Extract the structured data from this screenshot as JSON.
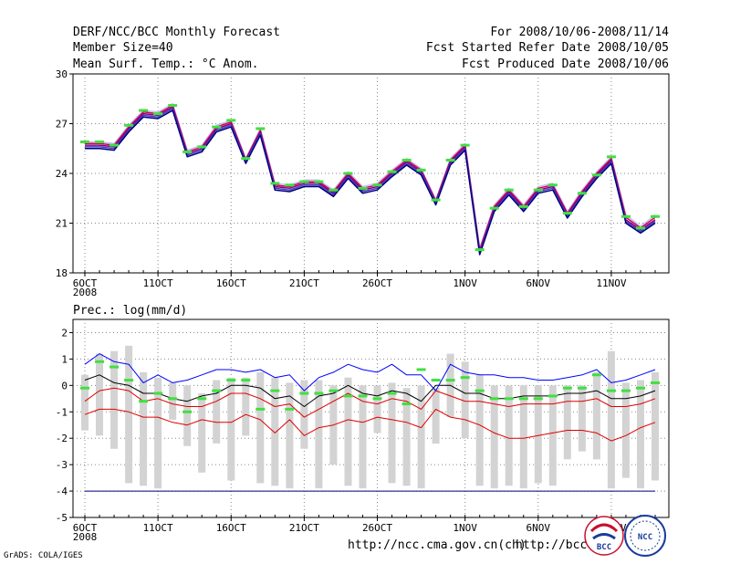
{
  "header": {
    "left": [
      "DERF/NCC/BCC Monthly Forecast",
      "Member Size=40",
      "Mean Surf. Temp.: °C Anom."
    ],
    "right": [
      "For 2008/10/06-2008/11/14",
      "Fcst Started Refer Date 2008/10/05",
      "Fcst Produced Date 2008/10/06"
    ]
  },
  "precip_title": "Prec.: log(mm/d)",
  "footer": {
    "grads": "GrADS: COLA/IGES",
    "url1": "http://ncc.cma.gov.cn(ch)",
    "url2": "http://bcc.",
    "logo1_text": "BCC",
    "logo2_text": "NCC"
  },
  "colors": {
    "ens_upper": "#c0c0ff",
    "ens_lower": "#000080",
    "mean": "#800080",
    "crimson": "#d4004a",
    "marker": "#40e040",
    "bar": "#d3d3d3",
    "upper_line": "#0000ff",
    "lower_line": "#e00000",
    "median_line": "#000000",
    "base_line": "#000080"
  },
  "chart_data": [
    {
      "type": "line",
      "title": "Mean Surf. Temp.: °C Anom.",
      "x_labels": [
        {
          "i": 0,
          "label": "6OCT",
          "sub": "2008"
        },
        {
          "i": 5,
          "label": "11OCT"
        },
        {
          "i": 10,
          "label": "16OCT"
        },
        {
          "i": 15,
          "label": "21OCT"
        },
        {
          "i": 20,
          "label": "26OCT"
        },
        {
          "i": 26,
          "label": "1NOV"
        },
        {
          "i": 31,
          "label": "6NOV"
        },
        {
          "i": 36,
          "label": "11NOV"
        }
      ],
      "n": 40,
      "ylim": [
        18,
        30
      ],
      "yticks": [
        18,
        21,
        24,
        27,
        30
      ],
      "series": [
        {
          "name": "markers",
          "values": [
            25.9,
            25.9,
            25.7,
            26.9,
            27.8,
            27.6,
            28.1,
            25.3,
            25.6,
            26.8,
            27.2,
            24.9,
            26.7,
            23.4,
            23.3,
            23.5,
            23.5,
            23.0,
            24.0,
            23.1,
            23.3,
            24.1,
            24.8,
            24.2,
            22.4,
            24.8,
            25.7,
            19.4,
            21.9,
            23.0,
            22.0,
            23.0,
            23.3,
            21.6,
            22.8,
            23.9,
            25.0,
            21.4,
            20.7,
            21.4
          ]
        },
        {
          "name": "upper",
          "values": [
            25.9,
            25.9,
            25.8,
            26.9,
            27.8,
            27.7,
            28.2,
            25.4,
            25.7,
            26.9,
            27.2,
            24.9,
            26.7,
            23.4,
            23.3,
            23.6,
            23.6,
            23.0,
            24.1,
            23.2,
            23.4,
            24.2,
            24.9,
            24.3,
            22.4,
            24.9,
            25.8,
            19.5,
            22.1,
            23.1,
            22.1,
            23.2,
            23.4,
            21.7,
            23.0,
            24.1,
            25.0,
            21.5,
            20.8,
            21.5
          ]
        },
        {
          "name": "mean",
          "values": [
            25.7,
            25.7,
            25.6,
            26.7,
            27.6,
            27.5,
            28.0,
            25.2,
            25.5,
            26.7,
            27.0,
            24.8,
            26.5,
            23.2,
            23.1,
            23.4,
            23.4,
            22.8,
            23.9,
            23.0,
            23.2,
            24.0,
            24.7,
            24.1,
            22.3,
            24.7,
            25.6,
            19.3,
            21.9,
            22.9,
            21.9,
            23.0,
            23.2,
            21.5,
            22.8,
            23.9,
            24.8,
            21.2,
            20.6,
            21.2
          ]
        },
        {
          "name": "lower",
          "values": [
            25.5,
            25.5,
            25.4,
            26.5,
            27.4,
            27.3,
            27.8,
            25.0,
            25.3,
            26.5,
            26.8,
            24.6,
            26.3,
            23.0,
            22.9,
            23.2,
            23.2,
            22.6,
            23.7,
            22.8,
            23.0,
            23.8,
            24.5,
            23.9,
            22.1,
            24.5,
            25.4,
            19.1,
            21.7,
            22.7,
            21.7,
            22.8,
            23.0,
            21.3,
            22.6,
            23.7,
            24.6,
            21.0,
            20.4,
            21.0
          ]
        }
      ]
    },
    {
      "type": "bar",
      "title": "Prec.: log(mm/d)",
      "x_labels": [
        {
          "i": 0,
          "label": "6OCT",
          "sub": "2008"
        },
        {
          "i": 5,
          "label": "11OCT"
        },
        {
          "i": 10,
          "label": "16OCT"
        },
        {
          "i": 15,
          "label": "21OCT"
        },
        {
          "i": 20,
          "label": "26OCT"
        },
        {
          "i": 26,
          "label": "1NOV"
        },
        {
          "i": 31,
          "label": "6NOV"
        },
        {
          "i": 36,
          "label": "11NOV"
        }
      ],
      "n": 40,
      "ylim": [
        -5,
        2.5
      ],
      "yticks": [
        -5,
        -4,
        -3,
        -2,
        -1,
        0,
        1,
        2
      ],
      "series": [
        {
          "name": "range_top",
          "values": [
            0.4,
            1.2,
            1.3,
            1.5,
            0.5,
            0.3,
            0.1,
            0.0,
            -0.3,
            0.2,
            0.3,
            0.3,
            0.5,
            0.3,
            0.1,
            0.2,
            0.2,
            0.0,
            0.3,
            0.0,
            0.0,
            0.1,
            -0.1,
            0.0,
            -0.1,
            1.2,
            0.9,
            0.4,
            0.0,
            0.0,
            0.0,
            0.0,
            0.0,
            0.0,
            0.0,
            0.5,
            1.3,
            0.1,
            0.2,
            0.5
          ]
        },
        {
          "name": "range_bottom",
          "values": [
            -1.7,
            -1.9,
            -2.4,
            -3.7,
            -3.8,
            -3.9,
            -1.3,
            -2.3,
            -3.3,
            -2.2,
            -3.6,
            -1.9,
            -3.7,
            -3.8,
            -3.9,
            -2.4,
            -3.9,
            -3.0,
            -3.8,
            -3.9,
            -1.8,
            -3.7,
            -3.8,
            -3.9,
            -2.2,
            -1.2,
            -2.0,
            -3.8,
            -3.9,
            -3.8,
            -3.9,
            -3.7,
            -3.8,
            -2.8,
            -2.5,
            -2.8,
            -3.9,
            -3.5,
            -3.9,
            -3.6
          ]
        },
        {
          "name": "markers",
          "values": [
            -0.1,
            0.9,
            0.7,
            0.2,
            -0.6,
            -0.3,
            -0.5,
            -1.0,
            -0.5,
            -0.2,
            0.2,
            0.2,
            -0.9,
            -0.2,
            -0.9,
            -0.3,
            -0.3,
            -0.2,
            -0.4,
            -0.4,
            -0.5,
            -0.3,
            -0.7,
            0.6,
            0.2,
            0.2,
            0.3,
            -0.2,
            -0.5,
            -0.5,
            -0.5,
            -0.5,
            -0.4,
            -0.1,
            -0.1,
            0.4,
            -0.2,
            -0.2,
            -0.1,
            0.1
          ]
        },
        {
          "name": "upper",
          "values": [
            0.8,
            1.2,
            0.9,
            0.8,
            0.1,
            0.4,
            0.1,
            0.2,
            0.4,
            0.6,
            0.6,
            0.5,
            0.6,
            0.3,
            0.4,
            -0.2,
            0.3,
            0.5,
            0.8,
            0.6,
            0.5,
            0.8,
            0.4,
            0.4,
            -0.2,
            0.8,
            0.5,
            0.4,
            0.4,
            0.3,
            0.3,
            0.2,
            0.2,
            0.3,
            0.4,
            0.6,
            0.1,
            0.2,
            0.4,
            0.6
          ]
        },
        {
          "name": "median",
          "values": [
            0.2,
            0.4,
            0.1,
            0.0,
            -0.3,
            -0.3,
            -0.5,
            -0.6,
            -0.4,
            -0.3,
            0.0,
            0.0,
            -0.1,
            -0.5,
            -0.4,
            -0.8,
            -0.4,
            -0.3,
            0.0,
            -0.3,
            -0.4,
            -0.2,
            -0.3,
            -0.6,
            0.0,
            0.0,
            -0.3,
            -0.3,
            -0.5,
            -0.5,
            -0.4,
            -0.4,
            -0.4,
            -0.3,
            -0.3,
            -0.2,
            -0.5,
            -0.5,
            -0.4,
            -0.2
          ]
        },
        {
          "name": "lower_a",
          "values": [
            -0.6,
            -0.2,
            -0.1,
            -0.2,
            -0.6,
            -0.5,
            -0.7,
            -0.8,
            -0.8,
            -0.6,
            -0.3,
            -0.3,
            -0.5,
            -0.8,
            -0.7,
            -1.2,
            -0.9,
            -0.6,
            -0.3,
            -0.6,
            -0.7,
            -0.5,
            -0.6,
            -0.9,
            -0.2,
            -0.4,
            -0.6,
            -0.6,
            -0.7,
            -0.8,
            -0.7,
            -0.7,
            -0.7,
            -0.6,
            -0.6,
            -0.5,
            -0.8,
            -0.8,
            -0.7,
            -0.5
          ]
        },
        {
          "name": "lower_b",
          "values": [
            -1.1,
            -0.9,
            -0.9,
            -1.0,
            -1.2,
            -1.2,
            -1.4,
            -1.5,
            -1.3,
            -1.4,
            -1.4,
            -1.1,
            -1.3,
            -1.8,
            -1.3,
            -1.9,
            -1.6,
            -1.5,
            -1.3,
            -1.4,
            -1.2,
            -1.3,
            -1.4,
            -1.6,
            -0.9,
            -1.2,
            -1.3,
            -1.5,
            -1.8,
            -2.0,
            -2.0,
            -1.9,
            -1.8,
            -1.7,
            -1.7,
            -1.8,
            -2.1,
            -1.9,
            -1.6,
            -1.4
          ]
        },
        {
          "name": "baseline",
          "values": [
            -4,
            -4,
            -4,
            -4,
            -4,
            -4,
            -4,
            -4,
            -4,
            -4,
            -4,
            -4,
            -4,
            -4,
            -4,
            -4,
            -4,
            -4,
            -4,
            -4,
            -4,
            -4,
            -4,
            -4,
            -4,
            -4,
            -4,
            -4,
            -4,
            -4,
            -4,
            -4,
            -4,
            -4,
            -4,
            -4,
            -4,
            -4,
            -4,
            -4
          ]
        }
      ]
    }
  ]
}
